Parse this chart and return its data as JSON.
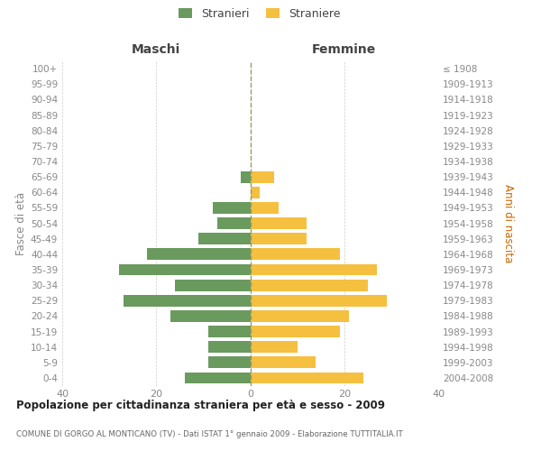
{
  "age_groups": [
    "100+",
    "95-99",
    "90-94",
    "85-89",
    "80-84",
    "75-79",
    "70-74",
    "65-69",
    "60-64",
    "55-59",
    "50-54",
    "45-49",
    "40-44",
    "35-39",
    "30-34",
    "25-29",
    "20-24",
    "15-19",
    "10-14",
    "5-9",
    "0-4"
  ],
  "birth_years": [
    "≤ 1908",
    "1909-1913",
    "1914-1918",
    "1919-1923",
    "1924-1928",
    "1929-1933",
    "1934-1938",
    "1939-1943",
    "1944-1948",
    "1949-1953",
    "1954-1958",
    "1959-1963",
    "1964-1968",
    "1969-1973",
    "1974-1978",
    "1979-1983",
    "1984-1988",
    "1989-1993",
    "1994-1998",
    "1999-2003",
    "2004-2008"
  ],
  "males": [
    0,
    0,
    0,
    0,
    0,
    0,
    0,
    2,
    0,
    8,
    7,
    11,
    22,
    28,
    16,
    27,
    17,
    9,
    9,
    9,
    14
  ],
  "females": [
    0,
    0,
    0,
    0,
    0,
    0,
    0,
    5,
    2,
    6,
    12,
    12,
    19,
    27,
    25,
    29,
    21,
    19,
    10,
    14,
    24
  ],
  "male_color": "#6a9a5e",
  "female_color": "#f5c040",
  "grid_color": "#cccccc",
  "axis_label_color": "#888888",
  "right_axis_color": "#cc6600",
  "title_main": "Popolazione per cittadinanza straniera per età e sesso - 2009",
  "title_sub": "COMUNE DI GORGO AL MONTICANO (TV) - Dati ISTAT 1° gennaio 2009 - Elaborazione TUTTITALIA.IT",
  "ylabel_left": "Fasce di età",
  "ylabel_right": "Anni di nascita",
  "label_maschi": "Maschi",
  "label_femmine": "Femmine",
  "legend_male": "Stranieri",
  "legend_female": "Straniere",
  "xlim": [
    -40,
    40
  ],
  "background_color": "#ffffff",
  "bar_height": 0.75
}
